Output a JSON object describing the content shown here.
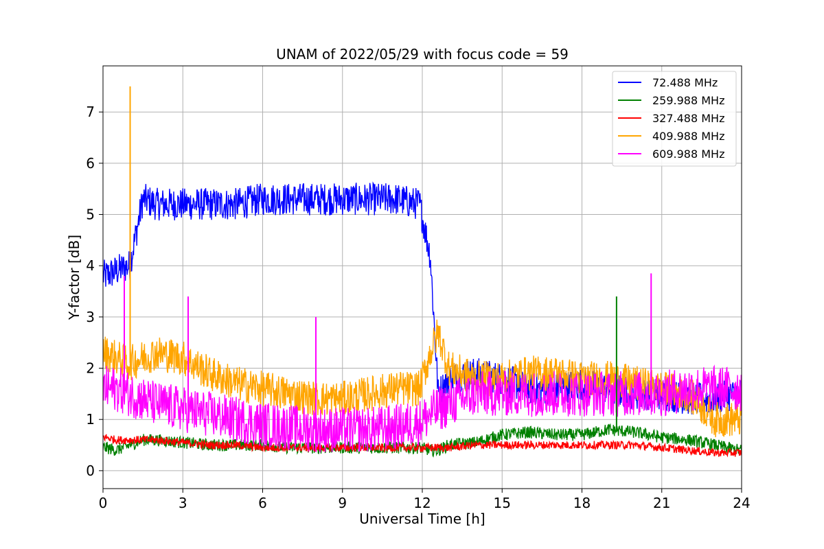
{
  "chart_data": {
    "type": "line",
    "title": "UNAM of 2022/05/29 with focus code = 59",
    "xlabel": "Universal Time [h]",
    "ylabel": "Y-factor [dB]",
    "xlim": [
      0,
      24
    ],
    "ylim": [
      -0.35,
      7.9
    ],
    "xticks": [
      0,
      3,
      6,
      9,
      12,
      15,
      18,
      21,
      24
    ],
    "yticks": [
      0,
      1,
      2,
      3,
      4,
      5,
      6,
      7
    ],
    "grid": true,
    "legend_position": "top-right",
    "x": [
      0.1,
      0.5,
      1.0,
      1.5,
      2.0,
      3.0,
      4.0,
      5.0,
      6.0,
      7.0,
      8.0,
      9.0,
      10.0,
      11.0,
      11.9,
      12.3,
      12.6,
      13.0,
      14.0,
      15.0,
      16.0,
      17.0,
      18.0,
      19.0,
      20.0,
      21.0,
      22.0,
      23.0,
      23.9
    ],
    "series": [
      {
        "name": " 72.488 MHz",
        "color": "#0000ff",
        "values": [
          3.8,
          3.9,
          4.0,
          5.3,
          5.2,
          5.2,
          5.2,
          5.2,
          5.3,
          5.3,
          5.3,
          5.3,
          5.3,
          5.3,
          5.2,
          4.2,
          1.5,
          1.8,
          1.9,
          1.8,
          1.6,
          1.6,
          1.7,
          1.6,
          1.5,
          1.5,
          1.4,
          1.4,
          1.5
        ]
      },
      {
        "name": "259.988 MHz",
        "color": "#008000",
        "values": [
          0.45,
          0.4,
          0.5,
          0.6,
          0.6,
          0.55,
          0.5,
          0.5,
          0.5,
          0.45,
          0.45,
          0.45,
          0.45,
          0.45,
          0.45,
          0.4,
          0.4,
          0.5,
          0.55,
          0.7,
          0.75,
          0.7,
          0.7,
          0.8,
          0.75,
          0.65,
          0.6,
          0.5,
          0.4
        ]
      },
      {
        "name": "327.488 MHz",
        "color": "#ff0000",
        "values": [
          0.65,
          0.6,
          0.6,
          0.6,
          0.6,
          0.55,
          0.5,
          0.5,
          0.45,
          0.45,
          0.45,
          0.45,
          0.45,
          0.45,
          0.45,
          0.45,
          0.45,
          0.45,
          0.5,
          0.5,
          0.5,
          0.5,
          0.5,
          0.5,
          0.5,
          0.45,
          0.4,
          0.35,
          0.35
        ]
      },
      {
        "name": "409.988 MHz",
        "color": "#ffa500",
        "values": [
          2.3,
          2.2,
          2.1,
          2.2,
          2.3,
          2.2,
          1.9,
          1.7,
          1.6,
          1.5,
          1.4,
          1.4,
          1.5,
          1.6,
          1.6,
          2.3,
          2.7,
          2.0,
          1.8,
          1.8,
          1.9,
          1.9,
          1.8,
          1.8,
          1.7,
          1.6,
          1.5,
          1.0,
          1.0
        ]
      },
      {
        "name": "609.988 MHz",
        "color": "#ff00ff",
        "values": [
          1.6,
          1.6,
          1.5,
          1.4,
          1.3,
          1.2,
          1.1,
          1.0,
          0.9,
          0.85,
          0.8,
          0.8,
          0.8,
          0.85,
          0.95,
          1.1,
          1.2,
          1.3,
          1.5,
          1.5,
          1.5,
          1.5,
          1.5,
          1.5,
          1.5,
          1.5,
          1.6,
          1.6,
          1.6
        ]
      }
    ],
    "annotations_spikes": [
      {
        "series": "409.988 MHz",
        "x": 1.02,
        "y": 7.5
      },
      {
        "series": "609.988 MHz",
        "x": 20.6,
        "y": 3.85
      },
      {
        "series": "259.988 MHz",
        "x": 19.3,
        "y": 3.4
      },
      {
        "series": "609.988 MHz",
        "x": 0.8,
        "y": 3.8
      },
      {
        "series": "609.988 MHz",
        "x": 3.2,
        "y": 3.4
      },
      {
        "series": "609.988 MHz",
        "x": 8.0,
        "y": 3.0
      }
    ]
  }
}
